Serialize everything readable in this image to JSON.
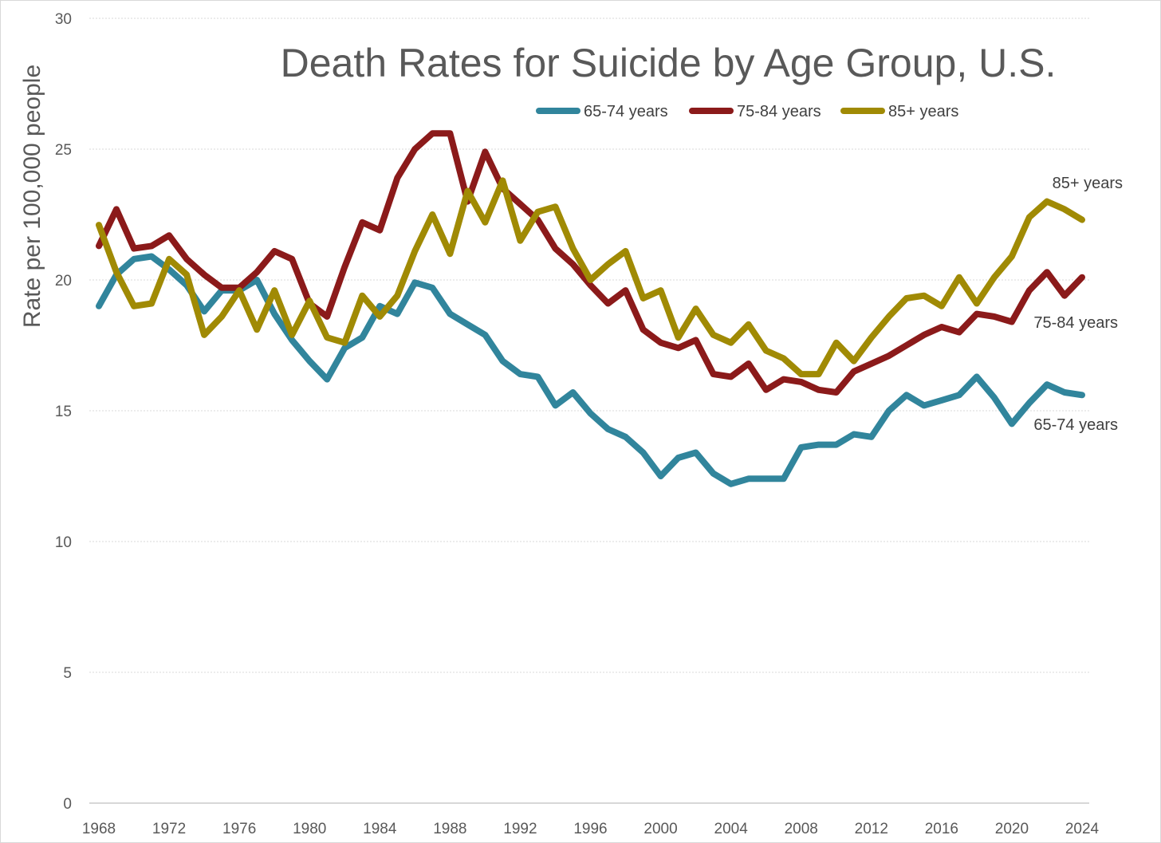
{
  "chart_data": {
    "type": "line",
    "title": "Death Rates for Suicide by Age Group, U.S.",
    "xlabel": "",
    "ylabel": "Rate per 100,000 people",
    "ylim": [
      0,
      30
    ],
    "xlim": [
      1968,
      2024
    ],
    "y_ticks": [
      0,
      5,
      10,
      15,
      20,
      25,
      30
    ],
    "x_ticks": [
      1968,
      1972,
      1976,
      1980,
      1984,
      1988,
      1992,
      1996,
      2000,
      2004,
      2008,
      2012,
      2016,
      2020,
      2024
    ],
    "grid": true,
    "legend_position": "top",
    "x": [
      1968,
      1969,
      1970,
      1971,
      1972,
      1973,
      1974,
      1975,
      1976,
      1977,
      1978,
      1979,
      1980,
      1981,
      1982,
      1983,
      1984,
      1985,
      1986,
      1987,
      1988,
      1989,
      1990,
      1991,
      1992,
      1993,
      1994,
      1995,
      1996,
      1997,
      1998,
      1999,
      2000,
      2001,
      2002,
      2003,
      2004,
      2005,
      2006,
      2007,
      2008,
      2009,
      2010,
      2011,
      2012,
      2013,
      2014,
      2015,
      2016,
      2017,
      2018,
      2019,
      2020,
      2021,
      2022,
      2023,
      2024
    ],
    "series": [
      {
        "name": "65-74 years",
        "end_label": "65-74 years",
        "color": "#31859c",
        "values": [
          19.0,
          20.2,
          20.8,
          20.9,
          20.4,
          19.8,
          18.8,
          19.6,
          19.6,
          20.0,
          18.7,
          17.7,
          16.9,
          16.2,
          17.4,
          17.8,
          19.0,
          18.7,
          19.9,
          19.7,
          18.7,
          18.3,
          17.9,
          16.9,
          16.4,
          16.3,
          15.2,
          15.7,
          14.9,
          14.3,
          14.0,
          13.4,
          12.5,
          13.2,
          13.4,
          12.6,
          12.2,
          12.4,
          12.4,
          12.4,
          13.6,
          13.7,
          13.7,
          14.1,
          14.0,
          15.0,
          15.6,
          15.2,
          15.4,
          15.6,
          16.3,
          15.5,
          14.5,
          15.3,
          16.0,
          15.7,
          15.6
        ]
      },
      {
        "name": "75-84 years",
        "end_label": "75-84 years",
        "color": "#8b1a1a",
        "values": [
          21.3,
          22.7,
          21.2,
          21.3,
          21.7,
          20.8,
          20.2,
          19.7,
          19.7,
          20.3,
          21.1,
          20.8,
          19.1,
          18.6,
          20.5,
          22.2,
          21.9,
          23.9,
          25.0,
          25.6,
          25.6,
          23.0,
          24.9,
          23.5,
          22.9,
          22.3,
          21.2,
          20.6,
          19.8,
          19.1,
          19.6,
          18.1,
          17.6,
          17.4,
          17.7,
          16.4,
          16.3,
          16.8,
          15.8,
          16.2,
          16.1,
          15.8,
          15.7,
          16.5,
          16.8,
          17.1,
          17.5,
          17.9,
          18.2,
          18.0,
          18.7,
          18.6,
          18.4,
          19.6,
          20.3,
          19.4,
          20.1
        ]
      },
      {
        "name": "85+ years",
        "end_label": "85+ years",
        "color": "#a08a04",
        "values": [
          22.1,
          20.3,
          19.0,
          19.1,
          20.8,
          20.2,
          17.9,
          18.6,
          19.6,
          18.1,
          19.6,
          17.9,
          19.2,
          17.8,
          17.6,
          19.4,
          18.6,
          19.4,
          21.1,
          22.5,
          21.0,
          23.4,
          22.2,
          23.8,
          21.5,
          22.6,
          22.8,
          21.2,
          20.0,
          20.6,
          21.1,
          19.3,
          19.6,
          17.8,
          18.9,
          17.9,
          17.6,
          18.3,
          17.3,
          17.0,
          16.4,
          16.4,
          17.6,
          16.9,
          17.8,
          18.6,
          19.3,
          19.4,
          19.0,
          20.1,
          19.1,
          20.1,
          20.9,
          22.4,
          23.0,
          22.7,
          22.3
        ]
      }
    ]
  }
}
